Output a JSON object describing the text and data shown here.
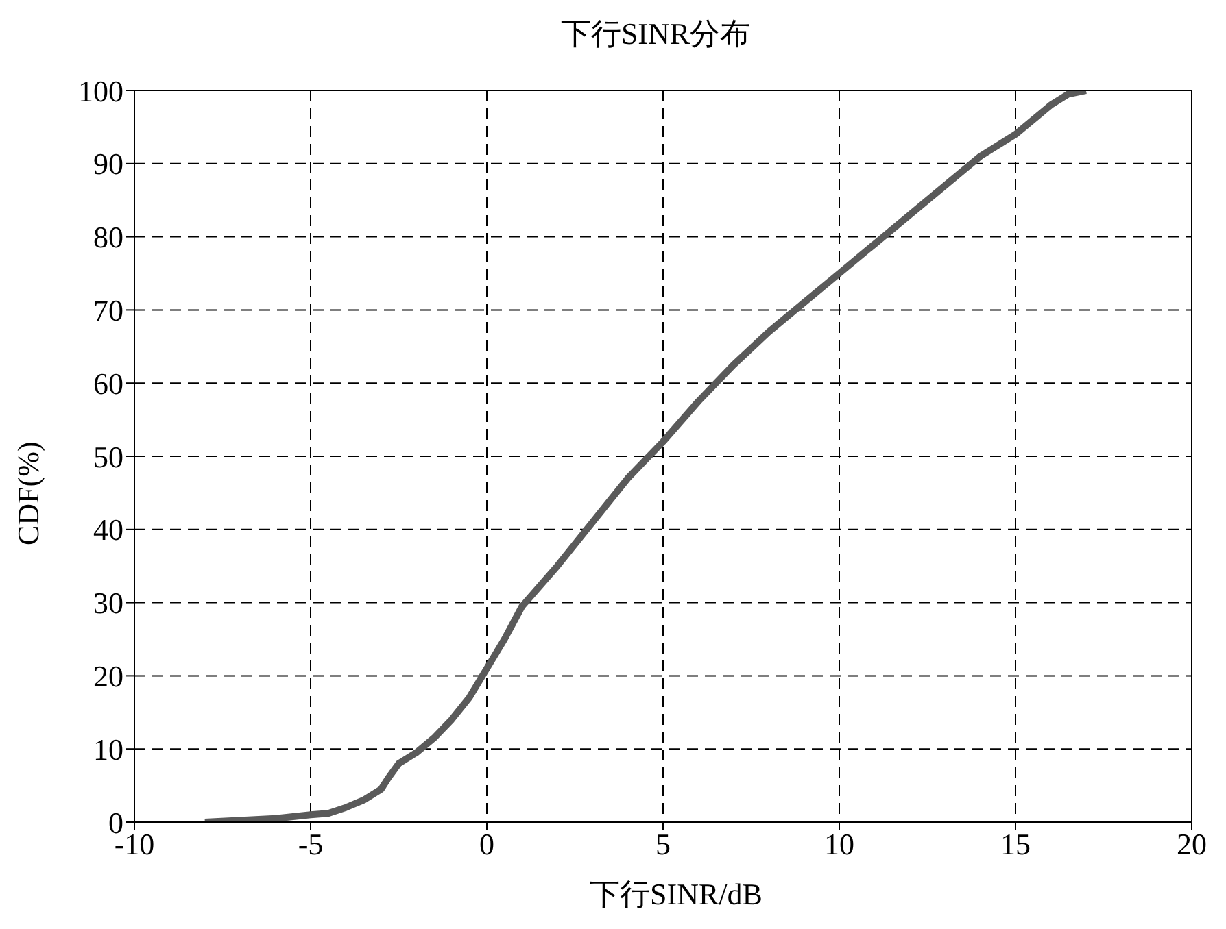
{
  "chart_data": {
    "type": "line",
    "title": "下行SINR分布",
    "xlabel": "下行SINR/dB",
    "ylabel": "CDF(%)",
    "x": [
      -8,
      -6,
      -5,
      -4.5,
      -4,
      -3.5,
      -3,
      -2.8,
      -2.5,
      -2,
      -1.5,
      -1,
      -0.5,
      0,
      0.5,
      1,
      2,
      3,
      4,
      5,
      6,
      7,
      8,
      9,
      10,
      11,
      12,
      13,
      14,
      15,
      16,
      16.5,
      17
    ],
    "series": [
      {
        "color": "#5a5a5a",
        "values": [
          0,
          0.5,
          1,
          1.2,
          2,
          3,
          4.5,
          6,
          8,
          9.5,
          11.5,
          14,
          17,
          21,
          25,
          29.5,
          35,
          41,
          47,
          52,
          57.5,
          62.5,
          67,
          71,
          75,
          79,
          83,
          87,
          91,
          94,
          98,
          99.5,
          100
        ]
      }
    ],
    "xlim": [
      -10,
      20
    ],
    "xticks": [
      -10,
      -5,
      0,
      5,
      10,
      15,
      20
    ],
    "ylim": [
      0,
      100
    ],
    "yticks": [
      0,
      10,
      20,
      30,
      40,
      50,
      60,
      70,
      80,
      90,
      100
    ],
    "grid": true,
    "marker": "none",
    "line_style": "solid"
  }
}
